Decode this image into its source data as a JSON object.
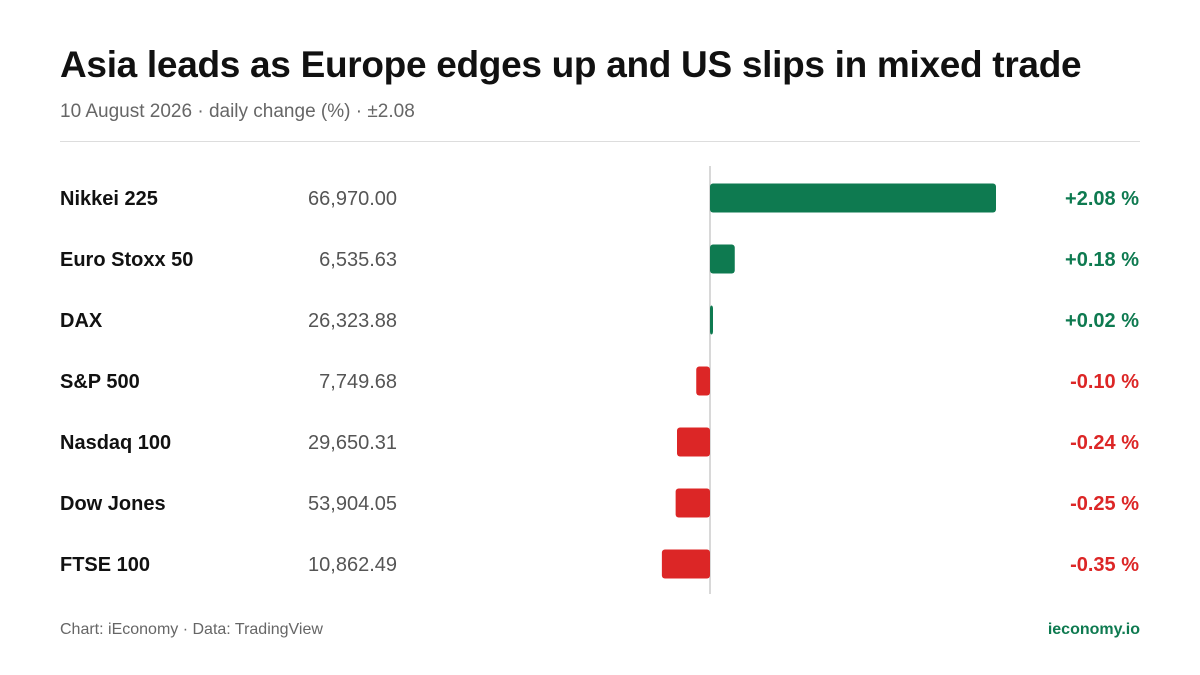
{
  "header": {
    "title": "Asia leads as Europe edges up and US slips in mixed trade",
    "subtitle": "10 August 2026 · daily change (%) · ±2.08"
  },
  "footer": {
    "source": "Chart: iEconomy · Data: TradingView",
    "brand": "ieconomy.io"
  },
  "colors": {
    "positive": "#0e7a50",
    "negative": "#dc2626",
    "axis": "#cccccc",
    "name_text": "#111111",
    "value_text": "#555555"
  },
  "chart_data": {
    "type": "bar",
    "orientation": "horizontal",
    "unit": "%",
    "scale_max": 2.08,
    "categories": [
      "Nikkei 225",
      "Euro Stoxx 50",
      "DAX",
      "S&P 500",
      "Nasdaq 100",
      "Dow Jones",
      "FTSE 100"
    ],
    "levels": [
      "66,970.00",
      "6,535.63",
      "26,323.88",
      "7,749.68",
      "29,650.31",
      "53,904.05",
      "10,862.49"
    ],
    "values": [
      2.08,
      0.18,
      0.02,
      -0.1,
      -0.24,
      -0.25,
      -0.35
    ],
    "labels": [
      "+2.08 %",
      "+0.18 %",
      "+0.02 %",
      "-0.10 %",
      "-0.24 %",
      "-0.25 %",
      "-0.35 %"
    ]
  }
}
